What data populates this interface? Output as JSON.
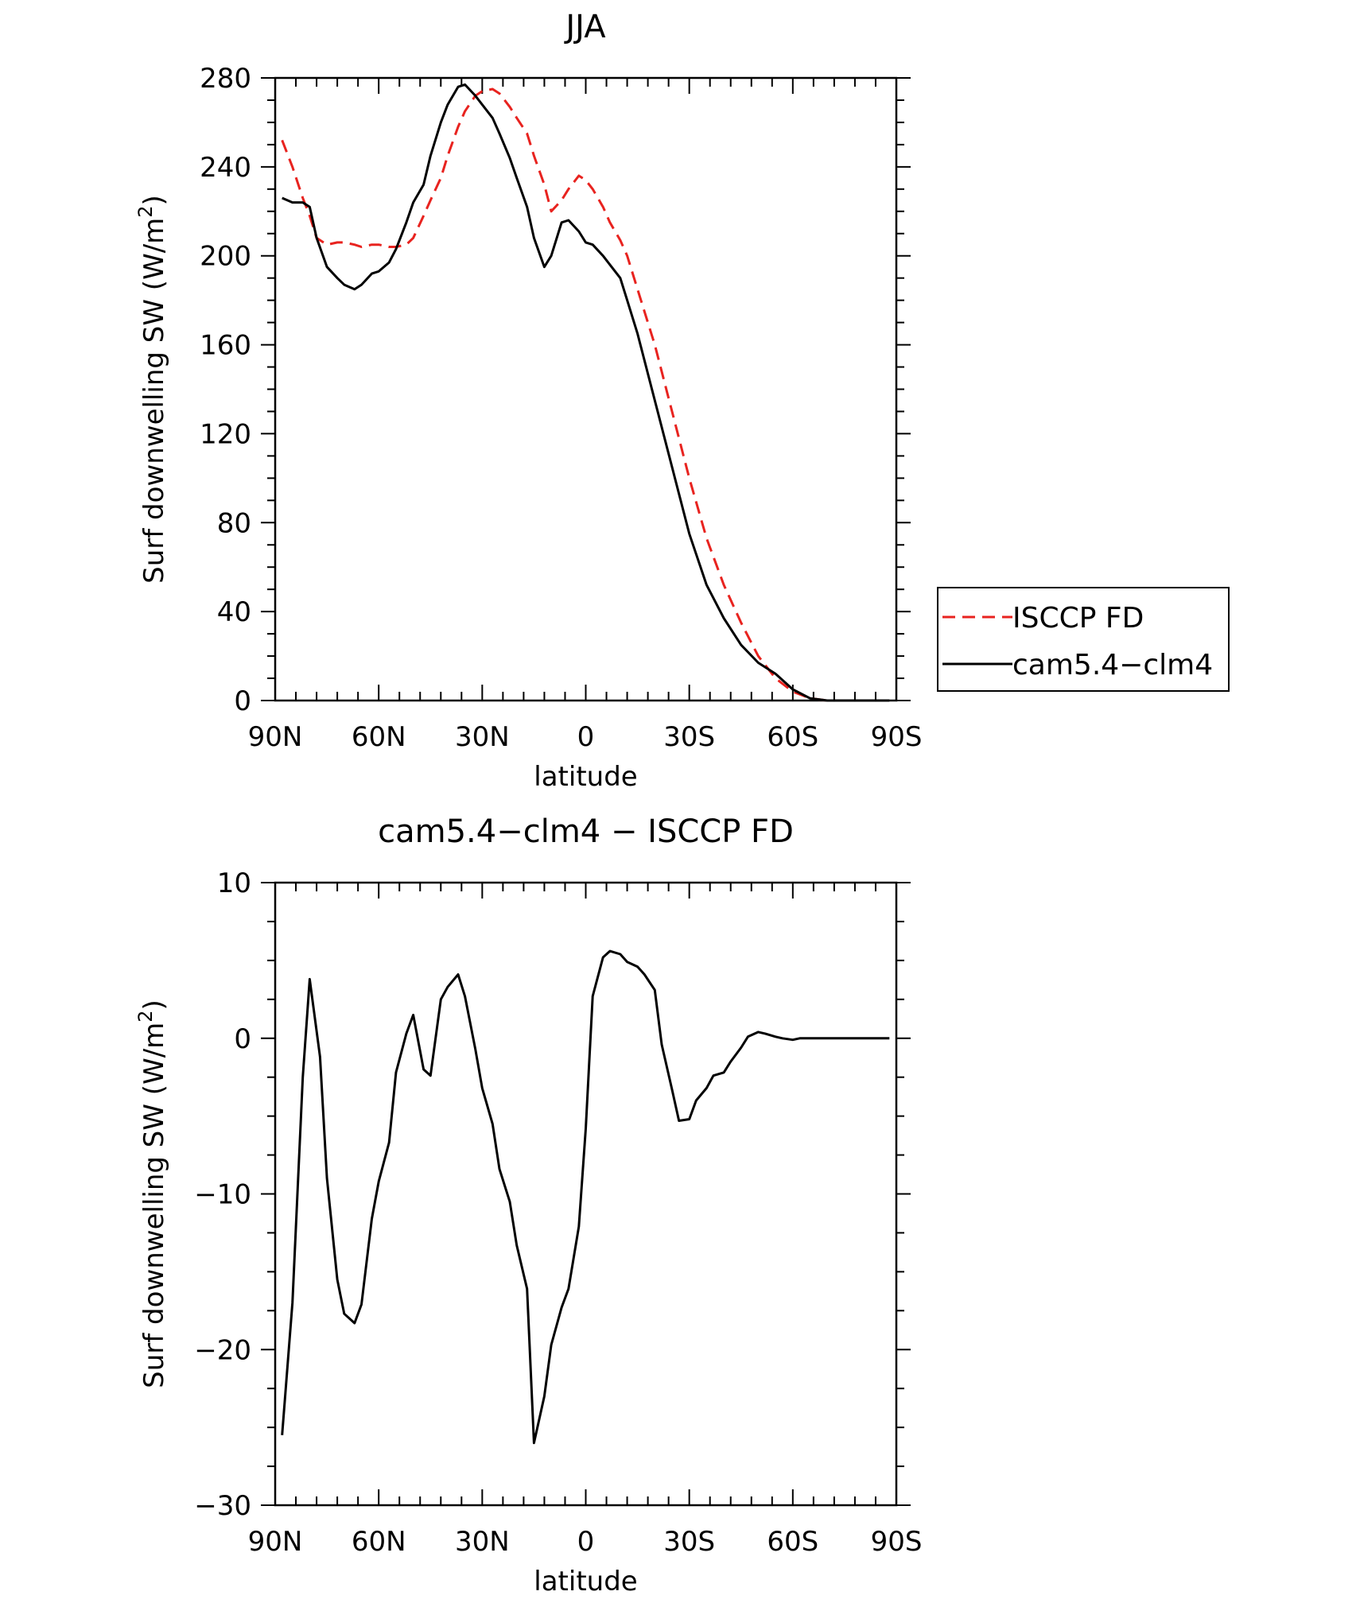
{
  "chart_data": [
    {
      "type": "line",
      "title": "JJA",
      "xlabel": "latitude",
      "ylabel": "Surf downwelling SW (W/m²)",
      "ylabel_parts": {
        "main": "Surf downwelling SW (W/m",
        "sup": "2",
        "close": ")"
      },
      "xlim": [
        90,
        -90
      ],
      "ylim": [
        0,
        280
      ],
      "xticks": [
        90,
        60,
        30,
        0,
        -30,
        -60,
        -90
      ],
      "xtick_labels": [
        "90N",
        "60N",
        "30N",
        "0",
        "30S",
        "60S",
        "90S"
      ],
      "yticks": [
        0,
        40,
        80,
        120,
        160,
        200,
        240,
        280
      ],
      "ytick_labels": [
        "0",
        "40",
        "80",
        "120",
        "160",
        "200",
        "240",
        "280"
      ],
      "legend": {
        "placement": "right",
        "entries": [
          "ISCCP FD",
          "cam5.4−clm4"
        ]
      },
      "series": [
        {
          "name": "ISCCP FD",
          "color": "#e8231f",
          "dash": "dashed",
          "x": [
            88,
            85,
            82,
            80,
            78,
            75,
            72,
            70,
            67,
            65,
            62,
            60,
            57,
            55,
            52,
            50,
            47,
            45,
            42,
            40,
            37,
            35,
            32,
            30,
            27,
            25,
            22,
            20,
            17,
            15,
            12,
            10,
            7,
            5,
            2,
            0,
            -2,
            -5,
            -7,
            -10,
            -12,
            -15,
            -20,
            -25,
            -30,
            -35,
            -40,
            -45,
            -50,
            -55,
            -60,
            -65,
            -70,
            -75,
            -78,
            -80,
            -85,
            -88
          ],
          "values": [
            252,
            240,
            226,
            218,
            208,
            205,
            206,
            206,
            205,
            204,
            205,
            205,
            204,
            204,
            205,
            208,
            218,
            225,
            235,
            245,
            258,
            265,
            272,
            274,
            275,
            273,
            267,
            262,
            255,
            245,
            232,
            220,
            225,
            230,
            236,
            234,
            230,
            222,
            215,
            207,
            200,
            185,
            160,
            130,
            100,
            73,
            52,
            35,
            20,
            10,
            4,
            1,
            0,
            0,
            0,
            0,
            0,
            0
          ]
        },
        {
          "name": "cam5.4−clm4",
          "color": "#000000",
          "dash": "solid",
          "x": [
            88,
            85,
            82,
            80,
            78,
            75,
            72,
            70,
            67,
            65,
            62,
            60,
            57,
            55,
            52,
            50,
            47,
            45,
            42,
            40,
            37,
            35,
            32,
            30,
            27,
            25,
            22,
            20,
            17,
            15,
            12,
            10,
            7,
            5,
            2,
            0,
            -2,
            -5,
            -7,
            -10,
            -12,
            -15,
            -20,
            -25,
            -30,
            -35,
            -40,
            -45,
            -50,
            -55,
            -60,
            -65,
            -70,
            -75,
            -78,
            -80,
            -85,
            -88
          ],
          "values": [
            226,
            224,
            224,
            222,
            208,
            195,
            190,
            187,
            185,
            187,
            192,
            193,
            197,
            203,
            215,
            224,
            232,
            245,
            260,
            268,
            276,
            277,
            272,
            268,
            262,
            255,
            244,
            235,
            222,
            208,
            195,
            200,
            215,
            216,
            211,
            206,
            205,
            200,
            196,
            190,
            180,
            165,
            135,
            105,
            75,
            52,
            37,
            25,
            17,
            12,
            5,
            1,
            0,
            0,
            0,
            0,
            0,
            0
          ]
        }
      ]
    },
    {
      "type": "line",
      "title": "cam5.4−clm4 − ISCCP FD",
      "xlabel": "latitude",
      "ylabel": "Surf downwelling SW (W/m²)",
      "ylabel_parts": {
        "main": "Surf downwelling SW (W/m",
        "sup": "2",
        "close": ")"
      },
      "xlim": [
        90,
        -90
      ],
      "ylim": [
        -30,
        10
      ],
      "xticks": [
        90,
        60,
        30,
        0,
        -30,
        -60,
        -90
      ],
      "xtick_labels": [
        "90N",
        "60N",
        "30N",
        "0",
        "30S",
        "60S",
        "90S"
      ],
      "yticks": [
        -30,
        -20,
        -10,
        0,
        10
      ],
      "ytick_labels": [
        "−30",
        "−20",
        "−10",
        "0",
        "10"
      ],
      "series": [
        {
          "color": "#000000",
          "dash": "solid",
          "x": [
            88,
            85,
            82,
            80,
            77,
            75,
            72,
            70,
            67,
            65,
            62,
            60,
            57,
            55,
            52,
            50,
            47,
            45,
            42,
            40,
            37,
            35,
            32,
            30,
            27,
            25,
            22,
            20,
            17,
            15,
            12,
            10,
            7,
            5,
            2,
            0,
            -2,
            -5,
            -7,
            -10,
            -12,
            -15,
            -17,
            -20,
            -22,
            -25,
            -27,
            -30,
            -32,
            -35,
            -37,
            -40,
            -42,
            -45,
            -47,
            -50,
            -52,
            -55,
            -57,
            -60,
            -62,
            -65,
            -67,
            -70,
            -72,
            -75,
            -78,
            -80,
            -85,
            -88
          ],
          "values": [
            -25.5,
            -17,
            -2.5,
            3.8,
            -1.2,
            -9,
            -15.5,
            -17.7,
            -18.3,
            -17.1,
            -11.6,
            -9.2,
            -6.7,
            -2.2,
            0.3,
            1.5,
            -2,
            -2.4,
            2.5,
            3.3,
            4.1,
            2.7,
            -0.7,
            -3.2,
            -5.5,
            -8.4,
            -10.5,
            -13.3,
            -16.1,
            -26,
            -23,
            -19.7,
            -17.3,
            -16.1,
            -12.1,
            -5.8,
            2.7,
            5.2,
            5.6,
            5.4,
            4.9,
            4.6,
            4.1,
            3.1,
            -0.4,
            -3.3,
            -5.3,
            -5.2,
            -4,
            -3.2,
            -2.4,
            -2.2,
            -1.5,
            -0.6,
            0.1,
            0.4,
            0.3,
            0.1,
            0,
            -0.1,
            0,
            0,
            0,
            0,
            0,
            0,
            0,
            0,
            0,
            0
          ]
        }
      ]
    }
  ]
}
